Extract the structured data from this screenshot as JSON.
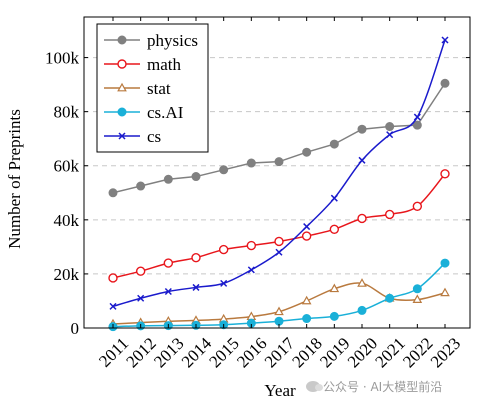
{
  "chart_data": {
    "type": "line",
    "title": "",
    "xlabel": "Year",
    "ylabel": "Number of Preprints",
    "x": [
      2011,
      2012,
      2013,
      2014,
      2015,
      2016,
      2017,
      2018,
      2019,
      2020,
      2021,
      2022,
      2023
    ],
    "ylim": [
      0,
      115000
    ],
    "yticks": [
      0,
      20000,
      40000,
      60000,
      80000,
      100000
    ],
    "ytick_labels": [
      "0",
      "20k",
      "40k",
      "60k",
      "80k",
      "100k"
    ],
    "grid": "horizontal dashed",
    "legend_position": "top-left",
    "series": [
      {
        "name": "physics",
        "color": "#808080",
        "marker": "filled-circle",
        "smooth": false,
        "values": [
          50000,
          52500,
          55000,
          56000,
          58500,
          61000,
          61500,
          65000,
          68000,
          73500,
          74500,
          75000,
          90500
        ]
      },
      {
        "name": "math",
        "color": "#e8161c",
        "marker": "open-circle",
        "smooth": true,
        "values": [
          18500,
          21000,
          24000,
          26000,
          29000,
          30500,
          32000,
          34000,
          36500,
          40500,
          42000,
          45000,
          57000
        ]
      },
      {
        "name": "stat",
        "color": "#b97a3f",
        "marker": "open-triangle",
        "smooth": true,
        "values": [
          1500,
          2000,
          2500,
          2800,
          3300,
          4200,
          6000,
          10000,
          14500,
          16500,
          11000,
          10500,
          13000
        ]
      },
      {
        "name": "cs.AI",
        "color": "#1ab0d8",
        "marker": "filled-circle",
        "smooth": true,
        "values": [
          500,
          800,
          900,
          1000,
          1200,
          1800,
          2500,
          3500,
          4300,
          6500,
          11000,
          14500,
          24000
        ]
      },
      {
        "name": "cs",
        "color": "#1a1acc",
        "marker": "x",
        "smooth": true,
        "values": [
          8000,
          11000,
          13500,
          15000,
          16500,
          21500,
          28000,
          37500,
          48000,
          62000,
          71500,
          78000,
          106500
        ]
      }
    ]
  },
  "watermark": {
    "icon": "wechat-icon",
    "text": "公众号 · AI大模型前沿"
  }
}
